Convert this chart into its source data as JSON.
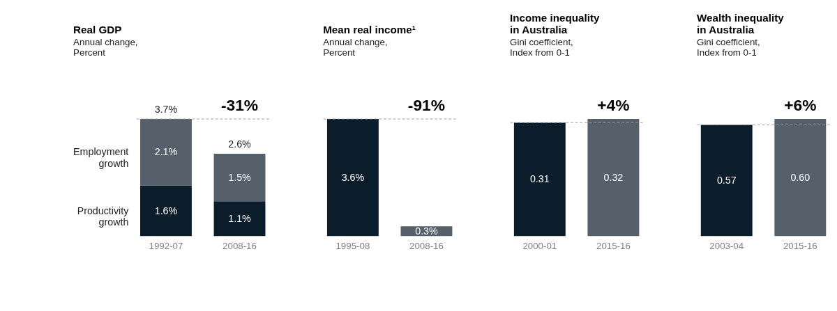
{
  "chart_data": [
    {
      "type": "bar",
      "title": "Real GDP",
      "subtitle": "Annual change,\nPercent",
      "categories": [
        "1992-07",
        "2008-16"
      ],
      "stacked": true,
      "grid": false,
      "tick_labels": "x",
      "series": [
        {
          "name": "Productivity growth",
          "color": "#0b1c2b",
          "values": [
            1.6,
            1.1
          ],
          "value_labels": [
            "1.6%",
            "1.1%"
          ]
        },
        {
          "name": "Employment growth",
          "color": "#55606b",
          "values": [
            2.1,
            1.5
          ],
          "value_labels": [
            "2.1%",
            "1.5%"
          ]
        }
      ],
      "totals": [
        "3.7%",
        "2.6%"
      ],
      "ref_lines": [
        {
          "axis": "y",
          "value": 3.7,
          "line_style": "dashed"
        }
      ],
      "annotations": [
        {
          "text": "-31%",
          "x": "2008-16",
          "y": 3.7
        }
      ]
    },
    {
      "type": "bar",
      "title": "Mean real income¹",
      "subtitle": "Annual change,\nPercent",
      "categories": [
        "1995-08",
        "2008-16"
      ],
      "grid": false,
      "tick_labels": "x",
      "values": [
        3.6,
        0.3
      ],
      "colors": [
        "#0b1c2b",
        "#55606b"
      ],
      "value_labels": [
        "3.6%",
        "0.3%"
      ],
      "ref_lines": [
        {
          "axis": "y",
          "value": 3.6,
          "line_style": "dashed"
        }
      ],
      "annotations": [
        {
          "text": "-91%",
          "x": "2008-16",
          "y": 3.6
        }
      ]
    },
    {
      "type": "bar",
      "title": "Income inequality\nin Australia",
      "subtitle": "Gini coefficient,\nIndex from 0-1",
      "categories": [
        "2000-01",
        "2015-16"
      ],
      "grid": false,
      "tick_labels": "x",
      "values": [
        0.31,
        0.32
      ],
      "colors": [
        "#0b1c2b",
        "#55606b"
      ],
      "value_labels": [
        "0.31",
        "0.32"
      ],
      "ref_lines": [
        {
          "axis": "y",
          "value": 0.31,
          "line_style": "dashed"
        }
      ],
      "annotations": [
        {
          "text": "+4%",
          "x": "2015-16",
          "y": 0.32
        }
      ]
    },
    {
      "type": "bar",
      "title": "Wealth inequality\nin Australia",
      "subtitle": "Gini coefficient,\nIndex from 0-1",
      "categories": [
        "2003-04",
        "2015-16"
      ],
      "grid": false,
      "tick_labels": "x",
      "values": [
        0.57,
        0.6
      ],
      "colors": [
        "#0b1c2b",
        "#55606b"
      ],
      "value_labels": [
        "0.57",
        "0.60"
      ],
      "ref_lines": [
        {
          "axis": "y",
          "value": 0.57,
          "line_style": "dashed"
        }
      ],
      "annotations": [
        {
          "text": "+6%",
          "x": "2015-16",
          "y": 0.6
        }
      ]
    }
  ]
}
